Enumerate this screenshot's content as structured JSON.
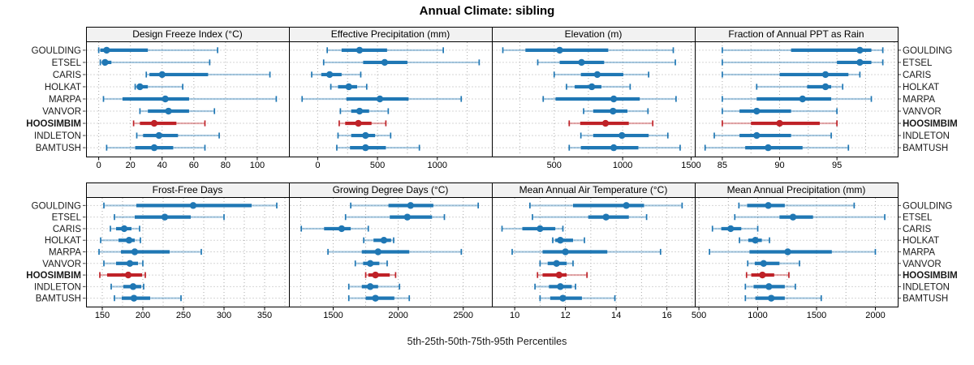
{
  "title": "Annual Climate: sibling",
  "caption": "5th-25th-50th-75th-95th Percentiles",
  "colors": {
    "series": "#1f77b4",
    "series_light": "rgba(31,119,180,0.38)",
    "highlight": "#bf2228",
    "highlight_light": "rgba(191,34,40,0.38)",
    "grid": "#ababab",
    "strip_bg": "#f2f2f2",
    "border": "#000000",
    "text": "#1a1a1a"
  },
  "chart_data": {
    "type": "dotplot-percentiles",
    "layout": "2 rows x 4 columns, shared row labels on left and right, x axes below each row bank, dotted grid",
    "percentile_labels": [
      "5th",
      "25th",
      "50th",
      "75th",
      "95th"
    ],
    "rows": [
      "GOULDING",
      "ETSEL",
      "CARIS",
      "HOLKAT",
      "MARPA",
      "VANVOR",
      "HOOSIMBIM",
      "INDLETON",
      "BAMTUSH"
    ],
    "highlight_row": "HOOSIMBIM",
    "panels": [
      {
        "title": "Design Freeze Index (°C)",
        "xlim": [
          -8,
          120
        ],
        "ticks": [
          0,
          20,
          40,
          60,
          80,
          100
        ],
        "grid_step": 20,
        "values": [
          [
            0,
            1,
            5,
            31,
            75
          ],
          [
            1,
            2,
            4,
            8,
            70
          ],
          [
            30,
            32,
            40,
            69,
            108
          ],
          [
            23,
            24,
            26,
            31,
            53
          ],
          [
            3,
            15,
            42,
            57,
            112
          ],
          [
            26,
            31,
            44,
            57,
            73
          ],
          [
            22,
            26,
            35,
            49,
            67
          ],
          [
            24,
            28,
            38,
            50,
            76
          ],
          [
            5,
            23,
            35,
            47,
            67
          ]
        ]
      },
      {
        "title": "Effective Precipitation (mm)",
        "xlim": [
          -240,
          1456
        ],
        "ticks": [
          0,
          500,
          1000
        ],
        "grid_step": 250,
        "values": [
          [
            80,
            200,
            350,
            580,
            1050
          ],
          [
            50,
            380,
            560,
            750,
            1350
          ],
          [
            -50,
            30,
            100,
            200,
            360
          ],
          [
            110,
            170,
            260,
            330,
            410
          ],
          [
            -130,
            240,
            520,
            760,
            1200
          ],
          [
            190,
            280,
            350,
            430,
            590
          ],
          [
            180,
            230,
            340,
            450,
            570
          ],
          [
            170,
            280,
            400,
            480,
            610
          ],
          [
            160,
            270,
            400,
            570,
            850
          ]
        ]
      },
      {
        "title": "Elevation (m)",
        "xlim": [
          45,
          1527
        ],
        "ticks": [
          500,
          1000,
          1500
        ],
        "grid_step": 250,
        "values": [
          [
            125,
            290,
            540,
            895,
            1370
          ],
          [
            380,
            540,
            700,
            865,
            1385
          ],
          [
            500,
            695,
            815,
            1005,
            1190
          ],
          [
            590,
            650,
            775,
            845,
            1055
          ],
          [
            420,
            510,
            935,
            1125,
            1390
          ],
          [
            715,
            785,
            930,
            1035,
            1185
          ],
          [
            610,
            690,
            875,
            1045,
            1220
          ],
          [
            695,
            785,
            995,
            1190,
            1330
          ],
          [
            610,
            695,
            935,
            1115,
            1420
          ]
        ]
      },
      {
        "title": "Fraction of Annual PPT as Rain",
        "xlim": [
          82.6,
          100.3
        ],
        "ticks": [
          85,
          90,
          95
        ],
        "grid_step": 2.5,
        "values": [
          [
            85,
            91,
            97,
            98,
            99
          ],
          [
            85,
            95,
            97,
            98,
            99
          ],
          [
            85,
            90,
            94,
            96,
            97
          ],
          [
            88,
            92.4,
            94,
            94.5,
            95.5
          ],
          [
            85,
            88,
            92,
            94.5,
            98
          ],
          [
            85,
            86.5,
            88,
            91,
            95
          ],
          [
            85,
            87.5,
            90,
            93.5,
            95
          ],
          [
            84.3,
            86.5,
            88,
            91,
            94.5
          ],
          [
            83.5,
            87,
            89,
            92,
            96
          ]
        ]
      },
      {
        "title": "Frost-Free Days",
        "xlim": [
          130,
          380
        ],
        "ticks": [
          150,
          200,
          250,
          300,
          350
        ],
        "grid_step": 25,
        "values": [
          [
            152,
            192,
            262,
            334,
            365
          ],
          [
            165,
            190,
            227,
            259,
            300
          ],
          [
            160,
            167,
            177,
            186,
            196
          ],
          [
            148,
            170,
            183,
            190,
            197
          ],
          [
            146,
            173,
            190,
            233,
            272
          ],
          [
            152,
            167,
            184,
            194,
            200
          ],
          [
            147,
            156,
            182,
            199,
            203
          ],
          [
            161,
            176,
            188,
            198,
            201
          ],
          [
            165,
            174,
            189,
            209,
            247
          ]
        ]
      },
      {
        "title": "Growing Degree Days (°C)",
        "xlim": [
          1160,
          2720
        ],
        "ticks": [
          1500,
          2000,
          2500
        ],
        "grid_step": 250,
        "values": [
          [
            1635,
            1925,
            2095,
            2270,
            2615
          ],
          [
            1595,
            1935,
            2070,
            2260,
            2355
          ],
          [
            1255,
            1430,
            1565,
            1635,
            1770
          ],
          [
            1735,
            1810,
            1890,
            1945,
            1965
          ],
          [
            1460,
            1720,
            1845,
            2085,
            2485
          ],
          [
            1670,
            1730,
            1785,
            1855,
            1915
          ],
          [
            1750,
            1770,
            1825,
            1935,
            1980
          ],
          [
            1620,
            1720,
            1785,
            1845,
            2010
          ],
          [
            1620,
            1750,
            1825,
            1970,
            2085
          ]
        ]
      },
      {
        "title": "Mean Annual Air Temperature (°C)",
        "xlim": [
          9.1,
          17.1
        ],
        "ticks": [
          10,
          12,
          14,
          16
        ],
        "grid_step": 1,
        "values": [
          [
            10.6,
            12.3,
            14.4,
            15.1,
            16.6
          ],
          [
            10.7,
            12.9,
            13.6,
            14.5,
            15.2
          ],
          [
            9.5,
            10.3,
            11.0,
            11.6,
            11.9
          ],
          [
            11.5,
            11.6,
            11.8,
            12.3,
            12.75
          ],
          [
            9.9,
            11.1,
            12.0,
            13.65,
            15.75
          ],
          [
            11.0,
            11.3,
            11.65,
            12.05,
            12.3
          ],
          [
            10.9,
            11.1,
            11.75,
            12.05,
            12.85
          ],
          [
            10.8,
            11.35,
            11.8,
            12.25,
            12.4
          ],
          [
            11.0,
            11.4,
            11.9,
            12.65,
            13.95
          ]
        ]
      },
      {
        "title": "Mean Annual Precipitation (mm)",
        "xlim": [
          465,
          2190
        ],
        "ticks": [
          500,
          1000,
          1500,
          2000
        ],
        "grid_step": 250,
        "values": [
          [
            840,
            910,
            1090,
            1230,
            1820
          ],
          [
            805,
            1185,
            1300,
            1470,
            2080
          ],
          [
            615,
            690,
            770,
            860,
            1000
          ],
          [
            845,
            920,
            980,
            1035,
            1100
          ],
          [
            590,
            930,
            1255,
            1630,
            2000
          ],
          [
            915,
            975,
            1050,
            1185,
            1355
          ],
          [
            905,
            945,
            1040,
            1140,
            1265
          ],
          [
            895,
            965,
            1095,
            1230,
            1320
          ],
          [
            895,
            980,
            1115,
            1230,
            1540
          ]
        ]
      }
    ]
  }
}
